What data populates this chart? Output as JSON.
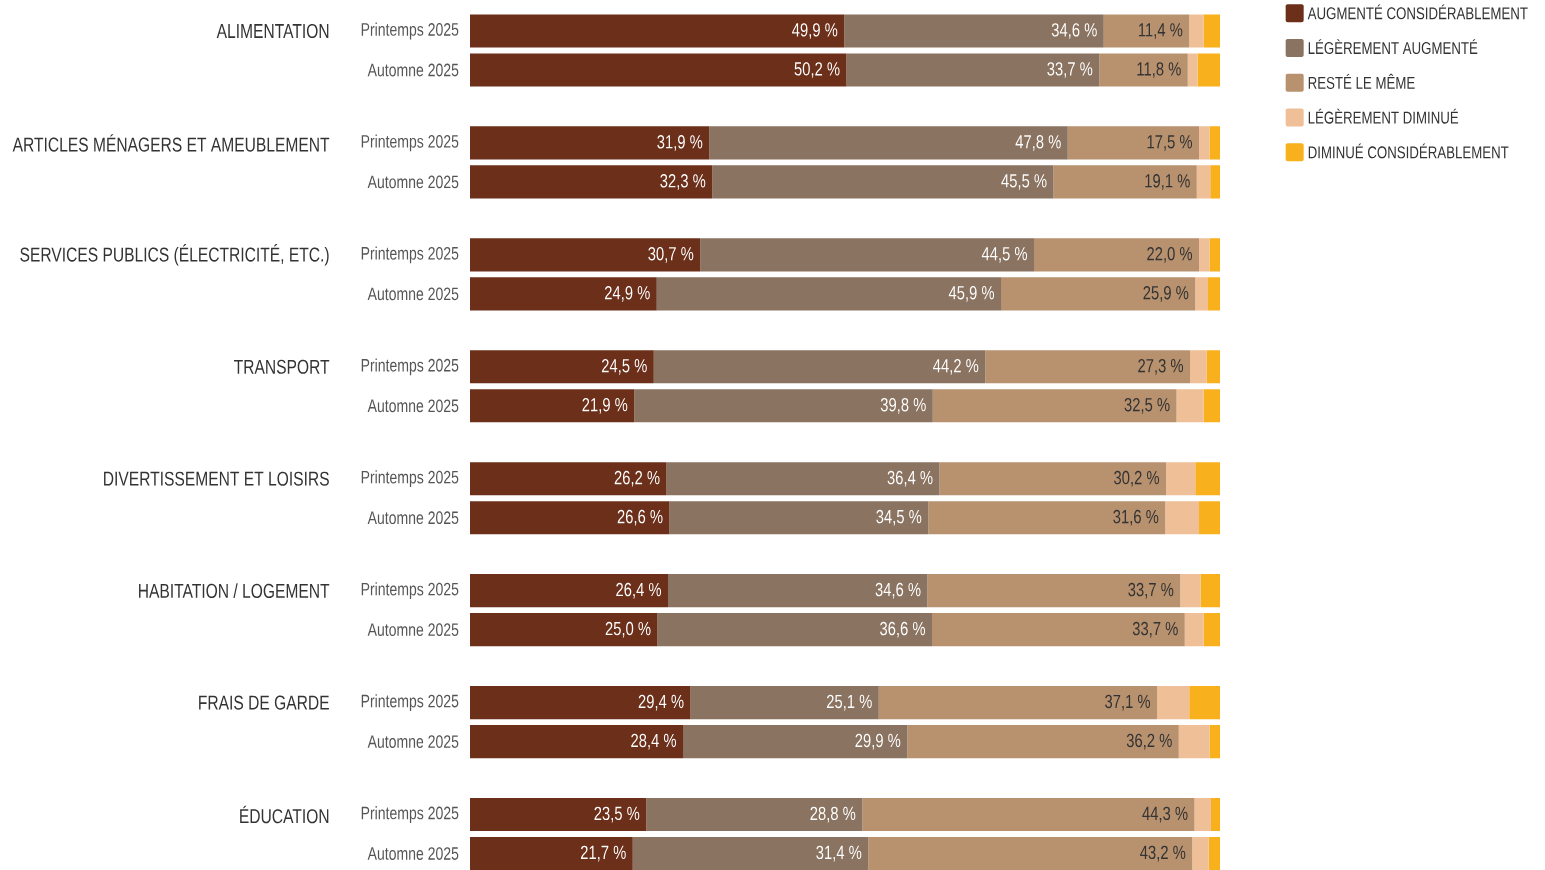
{
  "chart_data": {
    "type": "bar",
    "orientation": "horizontal",
    "stacked": true,
    "categories": [
      "Printemps 2025",
      "Automne 2025",
      "Printemps 2025",
      "Automne 2025",
      "Printemps 2025",
      "Automne 2025",
      "Printemps 2025",
      "Automne 2025",
      "Printemps 2025",
      "Automne 2025",
      "Printemps 2025",
      "Automne 2025",
      "Printemps 2025",
      "Automne 2025",
      "Printemps 2025",
      "Automne 2025"
    ],
    "annotations": [
      "ALIMENTATION",
      "ARTICLES MÉNAGERS ET AMEUBLEMENT",
      "SERVICES PUBLICS (ÉLECTRICITÉ, ETC.)",
      "TRANSPORT",
      "DIVERTISSEMENT ET LOISIRS",
      "HABITATION / LOGEMENT",
      "FRAIS DE GARDE",
      "ÉDUCATION"
    ],
    "legend": "top right",
    "series": [
      {
        "name": "AUGMENTÉ CONSIDÉRABLEMENT",
        "color": "#6b2f1a",
        "values": [
          49.9,
          50.2,
          31.9,
          32.3,
          30.7,
          24.9,
          24.5,
          21.9,
          26.2,
          26.6,
          26.4,
          25.0,
          29.4,
          28.4,
          23.5,
          21.7
        ],
        "value_labels": [
          "49,9 %",
          "50,2 %",
          "31,9 %",
          "32,3 %",
          "30,7 %",
          "24,9 %",
          "24,5 %",
          "21,9 %",
          "26,2 %",
          "26,6 %",
          "26,4 %",
          "25,0 %",
          "29,4 %",
          "28,4 %",
          "23,5 %",
          "21,7 %"
        ]
      },
      {
        "name": "LÉGÈREMENT AUGMENTÉ",
        "color": "#8a7360",
        "values": [
          34.6,
          33.7,
          47.8,
          45.5,
          44.5,
          45.9,
          44.2,
          39.8,
          36.4,
          34.5,
          34.6,
          36.6,
          25.1,
          29.9,
          28.8,
          31.4
        ],
        "value_labels": [
          "34,6 %",
          "33,7 %",
          "47,8 %",
          "45,5 %",
          "44,5 %",
          "45,9 %",
          "44,2 %",
          "39,8 %",
          "36,4 %",
          "34,5 %",
          "34,6 %",
          "36,6 %",
          "25,1 %",
          "29,9 %",
          "28,8 %",
          "31,4 %"
        ]
      },
      {
        "name": "RESTÉ LE MÊME",
        "color": "#b8916e",
        "values": [
          11.4,
          11.8,
          17.5,
          19.1,
          22.0,
          25.9,
          27.3,
          32.5,
          30.2,
          31.6,
          33.7,
          33.7,
          37.1,
          36.2,
          44.3,
          43.2
        ],
        "value_labels": [
          "11,4 %",
          "11,8 %",
          "17,5 %",
          "19,1 %",
          "22,0 %",
          "25,9 %",
          "27,3 %",
          "32,5 %",
          "30,2 %",
          "31,6 %",
          "33,7 %",
          "33,7 %",
          "37,1 %",
          "36,2 %",
          "44,3 %",
          "43,2 %"
        ]
      },
      {
        "name": "LÉGÈREMENT DIMINUÉ",
        "color": "#efbf98",
        "values": [
          1.9,
          1.3,
          1.4,
          1.8,
          1.4,
          1.7,
          2.2,
          3.6,
          3.9,
          4.5,
          2.7,
          2.5,
          4.3,
          4.1,
          2.2,
          2.2
        ]
      },
      {
        "name": "DIMINUÉ CONSIDÉRABLEMENT",
        "color": "#f8b01c",
        "values": [
          2.2,
          3.0,
          1.4,
          1.3,
          1.4,
          1.6,
          1.8,
          2.2,
          3.3,
          2.8,
          2.6,
          2.2,
          4.1,
          1.4,
          1.2,
          1.5
        ]
      }
    ]
  }
}
